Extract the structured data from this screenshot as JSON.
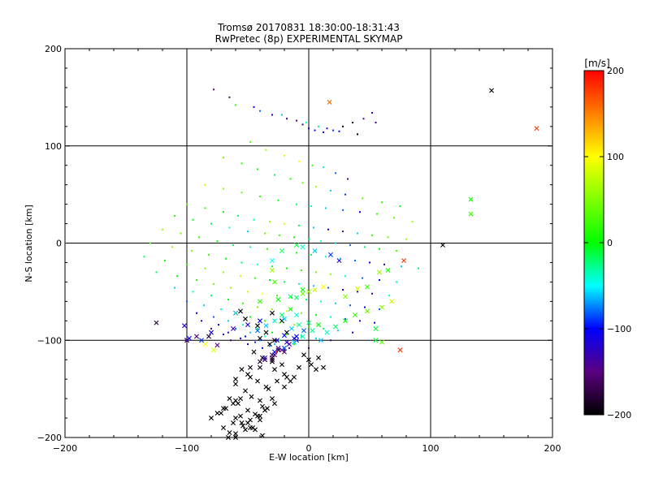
{
  "chart_data": {
    "type": "scatter",
    "title": "Tromsø 20170831 18:30:00-18:31:43",
    "subtitle": "RwPretec (8p) EXPERIMENTAL SKYMAP",
    "xlabel": "E-W location [km]",
    "ylabel": "N-S location [km]",
    "xlim": [
      -200,
      200
    ],
    "ylim": [
      -200,
      200
    ],
    "xticks": [
      "−200",
      "−100",
      "0",
      "100",
      "200"
    ],
    "yticks": [
      "−200",
      "−100",
      "0",
      "100",
      "200"
    ],
    "grid": true,
    "colorbar": {
      "label": "[m/s]",
      "range": [
        -200,
        200
      ],
      "ticks": [
        "−200",
        "−100",
        "0",
        "100",
        "200"
      ],
      "colormap": "rainbow (black→purple→blue→cyan→green→yellow→red)"
    },
    "marker_kinds": [
      "dot",
      "cross"
    ],
    "series": [
      {
        "kind": "cross",
        "x": [
          -100,
          -85,
          -78,
          -92,
          -82,
          150,
          187,
          17,
          -56,
          -52,
          -42,
          -35,
          -28,
          -30,
          -22,
          -40,
          -32,
          -25,
          -45,
          -38,
          -30,
          -18,
          -55,
          -48,
          -42,
          -35,
          -28,
          -20,
          -60,
          -52,
          -47,
          -40,
          -33,
          -26,
          -18,
          -65,
          -58,
          -50,
          -44,
          -38,
          -30,
          -20,
          -12,
          -8,
          2,
          8,
          12,
          -60,
          -55,
          -48,
          -42,
          -36,
          -28,
          -15,
          -4,
          0,
          6,
          -65,
          -60,
          -54,
          -48,
          -40,
          -34,
          -22,
          -70,
          -62,
          -56,
          -50,
          -44,
          -38,
          -66,
          -60,
          -52,
          -46,
          -40,
          -42,
          -35,
          -28,
          -22,
          -15,
          -26,
          -20,
          -14,
          -8,
          -25,
          -18,
          -10,
          -4,
          -30,
          -22,
          -16,
          -12,
          -36,
          -28,
          -20,
          -10,
          -48,
          -40,
          -30,
          -20,
          -60,
          -50,
          -40,
          -30,
          -70,
          -62,
          -56,
          -75,
          -68,
          -60,
          -80,
          -72,
          -100,
          -30,
          -22,
          -10,
          -5,
          5,
          18,
          25,
          -28,
          -5,
          -15,
          30,
          40,
          48,
          58,
          65,
          78,
          110,
          133,
          133,
          55,
          55,
          -125,
          -60,
          -30,
          60,
          75,
          -102,
          -88,
          -75,
          -98,
          -80,
          -62,
          -50,
          -40,
          -20,
          -10,
          0,
          8,
          3,
          -5,
          -12,
          -20,
          -28,
          -36,
          10,
          15,
          22,
          30,
          38,
          48,
          60,
          68,
          -40,
          -25,
          -10,
          -5,
          0,
          5,
          12
        ],
        "y": [
          -100,
          -104,
          -110,
          -96,
          -96,
          157,
          118,
          145,
          -70,
          -78,
          -85,
          -92,
          -100,
          -72,
          -80,
          -98,
          -104,
          -110,
          -112,
          -118,
          -122,
          -92,
          -130,
          -138,
          -142,
          -148,
          -130,
          -135,
          -145,
          -152,
          -158,
          -162,
          -150,
          -142,
          -138,
          -160,
          -165,
          -172,
          -176,
          -168,
          -160,
          -148,
          -138,
          -128,
          -125,
          -118,
          -128,
          -180,
          -185,
          -190,
          -178,
          -172,
          -165,
          -142,
          -115,
          -120,
          -130,
          -195,
          -200,
          -188,
          -182,
          -178,
          -170,
          -125,
          -190,
          -185,
          -178,
          -185,
          -192,
          -198,
          -200,
          -196,
          -192,
          -190,
          -182,
          -90,
          -85,
          -80,
          -74,
          -68,
          -100,
          -95,
          -88,
          -84,
          -108,
          -102,
          -96,
          -90,
          -115,
          -110,
          -104,
          -98,
          -120,
          -115,
          -108,
          -100,
          -128,
          -122,
          -118,
          -112,
          -140,
          -135,
          -128,
          -120,
          -170,
          -165,
          -160,
          -175,
          -170,
          -162,
          -180,
          -175,
          -100,
          -18,
          -8,
          -2,
          -4,
          -8,
          -12,
          -18,
          -40,
          -48,
          -55,
          -55,
          -47,
          -45,
          -30,
          -28,
          -18,
          -2,
          45,
          30,
          -88,
          -100,
          -82,
          -72,
          -28,
          -102,
          -110,
          -85,
          -100,
          -105,
          -98,
          -92,
          -88,
          -84,
          -80,
          -78,
          -74,
          -82,
          -84,
          -90,
          -96,
          -102,
          -108,
          -112,
          -118,
          -100,
          -92,
          -86,
          -80,
          -74,
          -70,
          -66,
          -60,
          -60,
          -58,
          -56,
          -52,
          -50,
          -48,
          -45
        ],
        "v": [
          -190,
          100,
          90,
          -140,
          -180,
          -200,
          180,
          160,
          -200,
          -200,
          -200,
          -200,
          -200,
          -200,
          -200,
          -200,
          -200,
          -200,
          -200,
          -200,
          -200,
          -200,
          -200,
          -200,
          -200,
          -200,
          -200,
          -200,
          -200,
          -200,
          -200,
          -200,
          -200,
          -200,
          -200,
          -200,
          -200,
          -200,
          -200,
          -200,
          -200,
          -200,
          -200,
          -200,
          -200,
          -200,
          -200,
          -200,
          -200,
          -200,
          -200,
          -200,
          -200,
          -200,
          -200,
          -200,
          -200,
          -200,
          -200,
          -200,
          -200,
          -200,
          -200,
          -200,
          -200,
          -200,
          -200,
          -200,
          -200,
          -200,
          -200,
          -200,
          -200,
          -200,
          -200,
          -80,
          -60,
          -40,
          -20,
          10,
          -120,
          -100,
          -60,
          -30,
          -140,
          -120,
          -100,
          -80,
          -160,
          -150,
          -130,
          -110,
          -170,
          -160,
          -140,
          -120,
          -190,
          -180,
          -170,
          -160,
          -200,
          -200,
          -190,
          -180,
          -200,
          -200,
          -200,
          -200,
          -200,
          -200,
          -200,
          -200,
          -150,
          -50,
          -30,
          -10,
          -40,
          -60,
          -90,
          -120,
          30,
          0,
          -20,
          50,
          80,
          20,
          60,
          10,
          180,
          -200,
          0,
          20,
          -10,
          -10,
          -180,
          -70,
          60,
          40,
          180,
          -120,
          -90,
          -150,
          -100,
          -110,
          -130,
          -120,
          -100,
          -60,
          -40,
          -20,
          0,
          -30,
          -40,
          -60,
          -80,
          -100,
          -120,
          -60,
          -40,
          -20,
          0,
          20,
          40,
          60,
          80,
          20,
          0,
          -20,
          40,
          60,
          80,
          100
        ]
      },
      {
        "kind": "dot",
        "x": [
          -78,
          -65,
          -45,
          -30,
          -18,
          -10,
          -5,
          0,
          5,
          12,
          20,
          28,
          36,
          45,
          52,
          -60,
          -40,
          -22,
          -2,
          8,
          15,
          25,
          40,
          55,
          -48,
          -35,
          -20,
          -8,
          3,
          12,
          22,
          32,
          -70,
          -55,
          -42,
          -28,
          -15,
          -5,
          6,
          18,
          30,
          44,
          60,
          75,
          -85,
          -70,
          -55,
          -40,
          -25,
          -10,
          2,
          14,
          28,
          42,
          56,
          70,
          85,
          -100,
          -85,
          -70,
          -58,
          -45,
          -32,
          -20,
          -8,
          4,
          16,
          28,
          40,
          52,
          65,
          80,
          -110,
          -95,
          -80,
          -65,
          -50,
          -36,
          -24,
          -12,
          0,
          10,
          22,
          34,
          46,
          58,
          72,
          -120,
          -105,
          -90,
          -75,
          -62,
          -48,
          -34,
          -22,
          -10,
          2,
          14,
          26,
          38,
          50,
          62,
          76,
          90,
          -130,
          -112,
          -96,
          -82,
          -68,
          -55,
          -42,
          -30,
          -18,
          -6,
          6,
          18,
          30,
          44,
          58,
          72,
          -135,
          -118,
          -100,
          -85,
          -70,
          -56,
          -44,
          -32,
          -20,
          -8,
          4,
          16,
          28,
          40,
          52,
          66,
          -125,
          -108,
          -92,
          -78,
          -64,
          -50,
          -38,
          -26,
          -14,
          -2,
          10,
          22,
          34,
          46,
          58,
          -110,
          -95,
          -80,
          -66,
          -54,
          -42,
          -30,
          -18,
          -6,
          6,
          18,
          30,
          42,
          54,
          -100,
          -86,
          -72,
          -60,
          -48,
          -36,
          -24,
          -12,
          0,
          12,
          24,
          36,
          -92,
          -78,
          -66,
          -54,
          -42,
          -30,
          -18,
          -6,
          6,
          18,
          -88,
          -74,
          -60,
          -48,
          -36,
          -24,
          -12,
          0,
          -80,
          -66,
          -52,
          -40,
          -28,
          -16,
          -70,
          -56,
          -44,
          -32,
          -20,
          -64,
          -50,
          -38,
          -26
        ],
        "y": [
          158,
          150,
          140,
          132,
          128,
          126,
          122,
          118,
          116,
          114,
          116,
          120,
          124,
          128,
          134,
          142,
          136,
          132,
          124,
          120,
          118,
          115,
          112,
          124,
          104,
          96,
          90,
          84,
          80,
          78,
          72,
          66,
          88,
          82,
          76,
          70,
          66,
          62,
          58,
          54,
          50,
          46,
          42,
          38,
          60,
          56,
          52,
          48,
          44,
          40,
          38,
          36,
          34,
          32,
          30,
          26,
          22,
          40,
          36,
          32,
          28,
          24,
          22,
          20,
          18,
          16,
          14,
          12,
          10,
          8,
          6,
          4,
          28,
          24,
          20,
          16,
          12,
          10,
          8,
          6,
          4,
          2,
          0,
          -2,
          -4,
          -6,
          -8,
          14,
          10,
          6,
          2,
          -2,
          -4,
          -6,
          -8,
          -10,
          -12,
          -14,
          -16,
          -18,
          -20,
          -22,
          -24,
          -26,
          0,
          -4,
          -8,
          -12,
          -16,
          -20,
          -22,
          -24,
          -26,
          -28,
          -30,
          -32,
          -34,
          -36,
          -38,
          -40,
          -14,
          -18,
          -22,
          -26,
          -30,
          -34,
          -36,
          -38,
          -40,
          -42,
          -44,
          -46,
          -48,
          -50,
          -52,
          -54,
          -30,
          -34,
          -38,
          -42,
          -46,
          -50,
          -52,
          -54,
          -56,
          -58,
          -60,
          -62,
          -64,
          -66,
          -68,
          -46,
          -50,
          -54,
          -58,
          -62,
          -66,
          -68,
          -70,
          -72,
          -74,
          -76,
          -78,
          -80,
          -82,
          -60,
          -64,
          -68,
          -72,
          -76,
          -80,
          -82,
          -84,
          -86,
          -88,
          -90,
          -92,
          -72,
          -76,
          -80,
          -84,
          -88,
          -92,
          -94,
          -96,
          -98,
          -100,
          -80,
          -84,
          -88,
          -92,
          -96,
          -100,
          -104,
          -108,
          -88,
          -92,
          -96,
          -100,
          -104,
          -108,
          -94,
          -98,
          -102,
          -106,
          -110,
          -100,
          -104,
          -108,
          -112
        ],
        "v": [
          -150,
          -160,
          -100,
          -130,
          -140,
          -150,
          -160,
          -120,
          -110,
          -100,
          -90,
          -200,
          -200,
          -150,
          -120,
          20,
          -80,
          -60,
          -40,
          -20,
          -120,
          -100,
          -200,
          -140,
          40,
          60,
          80,
          100,
          20,
          -40,
          -80,
          -140,
          40,
          20,
          0,
          -20,
          10,
          40,
          60,
          -60,
          -90,
          40,
          20,
          0,
          80,
          60,
          40,
          20,
          0,
          -20,
          -40,
          -60,
          -80,
          -100,
          20,
          40,
          60,
          40,
          20,
          0,
          -20,
          -40,
          60,
          80,
          -20,
          -60,
          -100,
          -140,
          -60,
          20,
          40,
          60,
          20,
          0,
          -20,
          -40,
          -60,
          40,
          20,
          0,
          -20,
          -40,
          -60,
          -80,
          -20,
          0,
          20,
          60,
          40,
          20,
          0,
          -20,
          -40,
          20,
          40,
          0,
          -20,
          -40,
          -60,
          -80,
          -100,
          -120,
          -60,
          -20,
          20,
          60,
          40,
          20,
          0,
          -20,
          -40,
          -20,
          0,
          20,
          40,
          60,
          -40,
          -80,
          -100,
          -40,
          -20,
          0,
          20,
          40,
          60,
          80,
          20,
          0,
          -20,
          -40,
          -60,
          -80,
          -100,
          -120,
          -140,
          -40,
          -20,
          0,
          20,
          40,
          60,
          80,
          100,
          20,
          0,
          -20,
          -40,
          -60,
          -80,
          -100,
          -80,
          -60,
          -40,
          -20,
          0,
          20,
          40,
          60,
          80,
          40,
          0,
          -40,
          -80,
          -120,
          -100,
          -80,
          -60,
          -40,
          -20,
          0,
          20,
          40,
          60,
          20,
          -20,
          -60,
          -120,
          -100,
          -80,
          -60,
          -40,
          -20,
          0,
          20,
          -20,
          -60,
          -140,
          -120,
          -100,
          -80,
          -60,
          -40,
          -20,
          0,
          -160,
          -140,
          -120,
          -100,
          -80,
          -60,
          -150,
          -130,
          -110,
          -90,
          -70,
          -160,
          -140,
          -120,
          -100
        ]
      }
    ]
  }
}
